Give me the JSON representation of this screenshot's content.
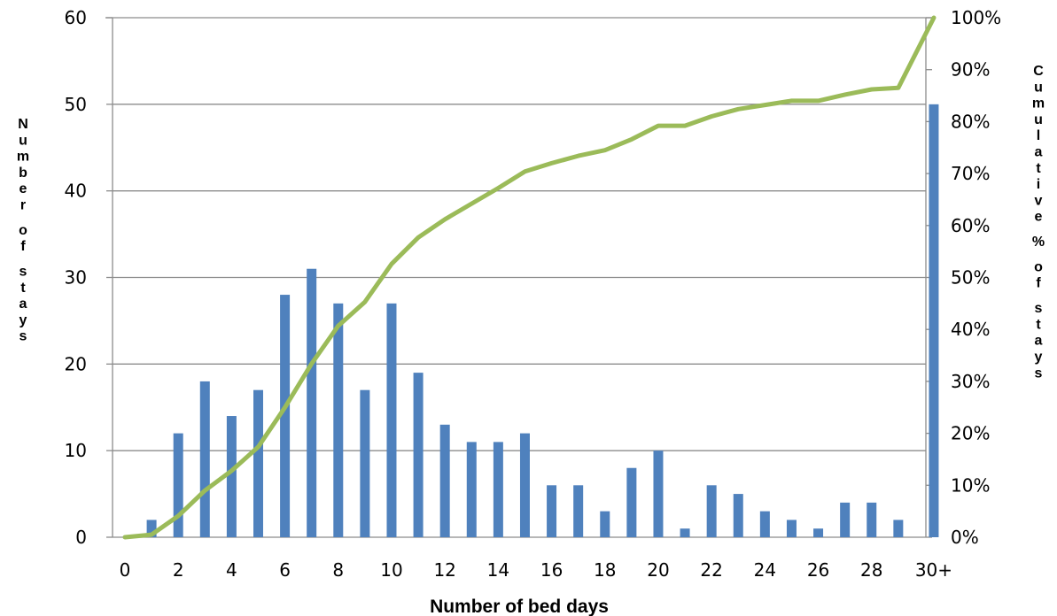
{
  "chart_data": {
    "type": "bar",
    "title": "",
    "xlabel": "Number of bed days",
    "ylabel": "Number of stays",
    "y2label": "Cumulative % of stays",
    "categories": [
      "0",
      "1",
      "2",
      "3",
      "4",
      "5",
      "6",
      "7",
      "8",
      "9",
      "10",
      "11",
      "12",
      "13",
      "14",
      "15",
      "16",
      "17",
      "18",
      "19",
      "20",
      "21",
      "22",
      "23",
      "24",
      "25",
      "26",
      "27",
      "28",
      "29",
      "30+"
    ],
    "x_tick_labels": [
      "0",
      "2",
      "4",
      "6",
      "8",
      "10",
      "12",
      "14",
      "16",
      "18",
      "20",
      "22",
      "24",
      "26",
      "28",
      "30+"
    ],
    "y_tick_labels": [
      "0",
      "10",
      "20",
      "30",
      "40",
      "50",
      "60"
    ],
    "y2_tick_labels": [
      "0%",
      "10%",
      "20%",
      "30%",
      "40%",
      "50%",
      "60%",
      "70%",
      "80%",
      "90%",
      "100%"
    ],
    "ylim": [
      0,
      60
    ],
    "y2lim": [
      0,
      100
    ],
    "grid": true,
    "series": [
      {
        "type": "bar",
        "axis": "left",
        "color": "#4f81bd",
        "values": [
          0,
          2,
          12,
          18,
          14,
          17,
          28,
          31,
          27,
          17,
          27,
          19,
          13,
          11,
          11,
          12,
          6,
          6,
          3,
          8,
          10,
          1,
          6,
          5,
          3,
          2,
          1,
          4,
          4,
          2,
          50
        ]
      },
      {
        "type": "line",
        "axis": "right",
        "color": "#9bbb59",
        "values": [
          0.0,
          0.5,
          4.1,
          9.0,
          12.8,
          17.4,
          25.0,
          33.4,
          40.7,
          45.3,
          52.6,
          57.7,
          61.2,
          64.2,
          67.2,
          70.4,
          72.0,
          73.4,
          74.5,
          76.6,
          79.2,
          79.2,
          81.0,
          82.4,
          83.2,
          84.0,
          84.0,
          85.2,
          86.2,
          86.5,
          100.0
        ]
      }
    ]
  }
}
